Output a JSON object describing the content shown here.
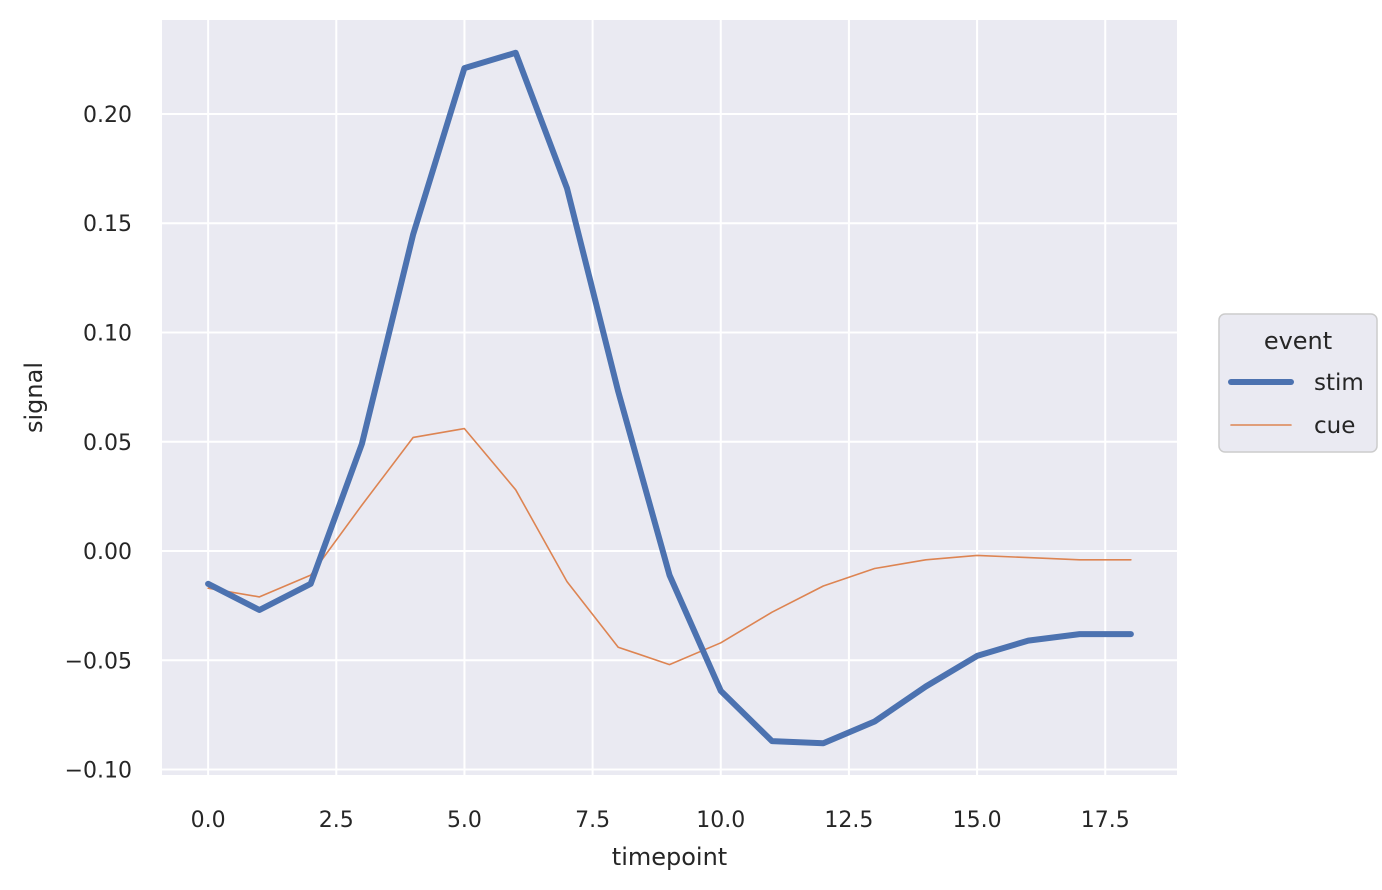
{
  "chart_data": {
    "type": "line",
    "xlabel": "timepoint",
    "ylabel": "signal",
    "xlim": [
      -0.9,
      18.9
    ],
    "ylim": [
      -0.1025,
      0.243
    ],
    "x_ticks": [
      "0.0",
      "2.5",
      "5.0",
      "7.5",
      "10.0",
      "12.5",
      "15.0",
      "17.5"
    ],
    "x_tick_values": [
      0,
      2.5,
      5,
      7.5,
      10,
      12.5,
      15,
      17.5
    ],
    "y_ticks": [
      "0.20",
      "0.15",
      "0.10",
      "0.05",
      "0.00",
      "−0.05",
      "−0.10"
    ],
    "y_tick_values": [
      0.2,
      0.15,
      0.1,
      0.05,
      0,
      -0.05,
      -0.1
    ],
    "grid": true,
    "background": "#eaeaf2",
    "grid_color": "#ffffff",
    "legend": {
      "title": "event",
      "placement": "right",
      "entries": [
        "stim",
        "cue"
      ]
    },
    "x": [
      0,
      1,
      2,
      3,
      4,
      5,
      6,
      7,
      8,
      9,
      10,
      11,
      12,
      13,
      14,
      15,
      16,
      17,
      18
    ],
    "series": [
      {
        "name": "stim",
        "color": "#4c72b0",
        "style": "thick",
        "values": [
          -0.015,
          -0.027,
          -0.015,
          0.049,
          0.145,
          0.221,
          0.228,
          0.166,
          0.073,
          -0.011,
          -0.064,
          -0.087,
          -0.088,
          -0.078,
          -0.062,
          -0.048,
          -0.041,
          -0.038,
          -0.038
        ]
      },
      {
        "name": "cue",
        "color": "#dd8452",
        "style": "thin",
        "values": [
          -0.017,
          -0.021,
          -0.011,
          0.021,
          0.052,
          0.056,
          0.028,
          -0.014,
          -0.044,
          -0.052,
          -0.042,
          -0.028,
          -0.016,
          -0.008,
          -0.004,
          -0.002,
          -0.003,
          -0.004,
          -0.004
        ]
      }
    ]
  }
}
